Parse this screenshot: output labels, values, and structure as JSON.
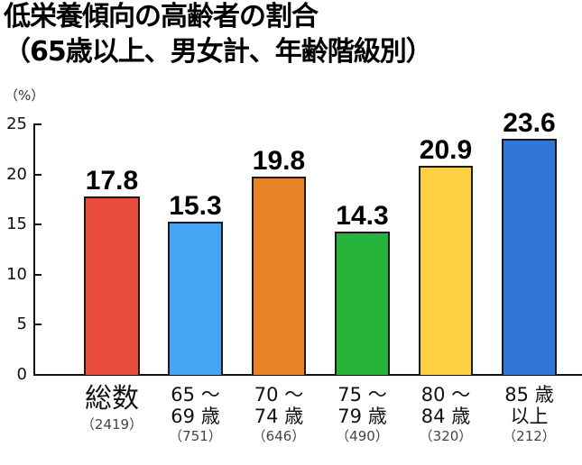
{
  "title": {
    "line1": "低栄養傾向の高齢者の割合",
    "line2": "（65歳以上、男女計、年齢階級別）"
  },
  "y_unit": "（%）",
  "y_ticks": [
    "25",
    "20",
    "15",
    "10",
    "5",
    "0"
  ],
  "bars": [
    {
      "label_line1": "総数",
      "label_line2": "",
      "n": "（2419）",
      "value": "17.8",
      "color": "#e84c3d"
    },
    {
      "label_line1": "65 〜",
      "label_line2": "69 歳",
      "n": "（751）",
      "value": "15.3",
      "color": "#45a5f5"
    },
    {
      "label_line1": "70 〜",
      "label_line2": "74 歳",
      "n": "（646）",
      "value": "19.8",
      "color": "#e88224"
    },
    {
      "label_line1": "75 〜",
      "label_line2": "79 歳",
      "n": "（490）",
      "value": "14.3",
      "color": "#25b33a"
    },
    {
      "label_line1": "80 〜",
      "label_line2": "84 歳",
      "n": "（320）",
      "value": "20.9",
      "color": "#fdd043"
    },
    {
      "label_line1": "85 歳",
      "label_line2": "以上",
      "n": "（212）",
      "value": "23.6",
      "color": "#3277d8"
    }
  ],
  "chart_data": {
    "type": "bar",
    "title": "低栄養傾向の高齢者の割合（65歳以上、男女計、年齢階級別）",
    "xlabel": "",
    "ylabel": "（%）",
    "ylim": [
      0,
      25
    ],
    "yticks": [
      0,
      5,
      10,
      15,
      20,
      25
    ],
    "grid": false,
    "legend": null,
    "categories": [
      "総数 (2419)",
      "65〜69歳 (751)",
      "70〜74歳 (646)",
      "75〜79歳 (490)",
      "80〜84歳 (320)",
      "85歳以上 (212)"
    ],
    "values": [
      17.8,
      15.3,
      19.8,
      14.3,
      20.9,
      23.6
    ],
    "colors": [
      "#e84c3d",
      "#45a5f5",
      "#e88224",
      "#25b33a",
      "#fdd043",
      "#3277d8"
    ]
  }
}
